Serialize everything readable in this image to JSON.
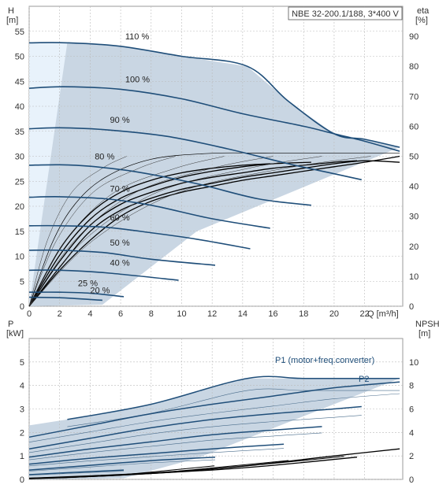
{
  "chart_data": [
    {
      "type": "line",
      "panel": "head-efficiency",
      "title": "NBE 32-200.1/188, 3*400 V",
      "ylabel": "H",
      "yunit": "[m]",
      "y2label": "eta",
      "y2unit": "[%]",
      "xlabel": "Q [m³/h]",
      "xlim": [
        0,
        24.5
      ],
      "ylim": [
        0,
        60
      ],
      "y2lim": [
        0,
        100
      ],
      "xticks": [
        "0",
        "2",
        "4",
        "6",
        "8",
        "10",
        "12",
        "14",
        "16",
        "18",
        "20",
        "22"
      ],
      "yticks": [
        "0",
        "5",
        "10",
        "15",
        "20",
        "25",
        "30",
        "35",
        "40",
        "45",
        "50",
        "55"
      ],
      "y2ticks": [
        "0",
        "10",
        "20",
        "30",
        "40",
        "50",
        "60",
        "70",
        "80",
        "90"
      ],
      "grid": true,
      "colors": {
        "envelope": "#c9d6e3",
        "envelope_light": "#e8f2fb",
        "curve": "#1f4e79",
        "eta": "#000000"
      },
      "series": [
        {
          "name": "110 %",
          "x": [
            0,
            2.5,
            6,
            10,
            14.3,
            17,
            20,
            22,
            24.3
          ],
          "y": [
            52.7,
            52.7,
            52,
            50,
            48,
            41,
            34.5,
            33.4,
            31.8
          ]
        },
        {
          "name": "100 %",
          "x": [
            0,
            2.3,
            6,
            10,
            14,
            18,
            20,
            22,
            24.3
          ],
          "y": [
            43.6,
            43.9,
            43.4,
            41.5,
            38.5,
            36,
            34.5,
            33,
            31
          ]
        },
        {
          "name": "90 %",
          "x": [
            0,
            2,
            5,
            9,
            13,
            17,
            20,
            21.8
          ],
          "y": [
            35.5,
            35.7,
            35.3,
            34,
            31.5,
            28.5,
            26.5,
            25.3
          ]
        },
        {
          "name": "80 %",
          "x": [
            0,
            2,
            4,
            7,
            11,
            15,
            18.5
          ],
          "y": [
            28.2,
            28.3,
            28.0,
            26.9,
            24.5,
            21.5,
            20.2
          ]
        },
        {
          "name": "70 %",
          "x": [
            0,
            2,
            5,
            8,
            12,
            15.8
          ],
          "y": [
            21.8,
            21.9,
            21.5,
            20.2,
            17.5,
            15.6
          ]
        },
        {
          "name": "60 %",
          "x": [
            0,
            2,
            5,
            8,
            11,
            14.5
          ],
          "y": [
            16.1,
            16.1,
            15.8,
            14.7,
            13.4,
            11.5
          ]
        },
        {
          "name": "50 %",
          "x": [
            0,
            2,
            5,
            8,
            12.2
          ],
          "y": [
            11.2,
            11.2,
            10.7,
            9.4,
            8.2
          ]
        },
        {
          "name": "40 %",
          "x": [
            0,
            2,
            5,
            9.8
          ],
          "y": [
            7.2,
            7.2,
            6.7,
            5.2
          ]
        },
        {
          "name": "25 %",
          "x": [
            0,
            2,
            4,
            6.2
          ],
          "y": [
            2.8,
            2.8,
            2.6,
            1.9
          ]
        },
        {
          "name": "20 %",
          "x": [
            0,
            2,
            4.8
          ],
          "y": [
            1.8,
            1.7,
            1.2
          ]
        }
      ],
      "eta_curves_percent": {
        "description_values": [
          {
            "x": [
              0,
              2,
              4,
              6,
              8,
              10,
              12,
              14,
              16,
              18,
              20,
              22,
              24.3
            ],
            "y": [
              0,
              13,
              25,
              32,
              36,
              39,
              41,
              43,
              44.5,
              46,
              47.5,
              48.5,
              48
            ]
          },
          {
            "x": [
              0,
              2,
              4,
              6,
              8,
              10,
              12,
              14,
              16,
              18,
              20,
              21.5
            ],
            "y": [
              0,
              15,
              27,
              34,
              38,
              41,
              43,
              44.5,
              46,
              47,
              48,
              48.5
            ]
          },
          {
            "x": [
              0,
              2,
              4,
              6,
              8,
              10,
              12,
              14,
              16,
              18.5
            ],
            "y": [
              0,
              17,
              29,
              36,
              40,
              43,
              45,
              46.5,
              47.5,
              48
            ]
          },
          {
            "x": [
              0,
              2,
              4,
              6,
              8,
              10,
              12,
              14,
              15.8
            ],
            "y": [
              0,
              19,
              31,
              38,
              42,
              44.5,
              46,
              47,
              47.5
            ]
          },
          {
            "x": [
              0,
              2,
              4,
              6,
              8,
              10,
              12,
              14,
              16,
              18,
              20,
              22,
              24.3
            ],
            "y": [
              0,
              12,
              22,
              30,
              35,
              38,
              40,
              42,
              43.5,
              45,
              46.5,
              48,
              50
            ]
          },
          {
            "x": [
              0,
              1.5,
              3,
              5,
              8,
              12,
              16,
              20,
              24.3
            ],
            "y": [
              0,
              21,
              34,
              43,
              49,
              51,
              51,
              51,
              51
            ]
          }
        ]
      }
    },
    {
      "type": "line",
      "panel": "power-npsh",
      "ylabel": "P",
      "yunit": "[kW]",
      "y2label": "NPSH",
      "y2unit": "[m]",
      "xlim": [
        0,
        24.5
      ],
      "ylim": [
        0,
        6
      ],
      "y2lim": [
        0,
        12
      ],
      "yticks": [
        "0",
        "1",
        "2",
        "3",
        "4",
        "5"
      ],
      "y2ticks": [
        "0",
        "2",
        "4",
        "6",
        "8",
        "10"
      ],
      "grid": true,
      "colors": {
        "envelope": "#c9d6e3",
        "curve": "#1f4e79",
        "npsh": "#000000"
      },
      "annotations": [
        "P1 (motor+freq.converter)",
        "P2"
      ],
      "series": [
        {
          "name": "P1 (motor+freq.converter)",
          "x": [
            2.5,
            8,
            14.3,
            18,
            22,
            24.3
          ],
          "y": [
            2.55,
            3.2,
            4.3,
            4.3,
            4.3,
            4.3
          ]
        },
        {
          "name": "P2",
          "x": [
            0,
            4,
            8,
            12,
            16,
            20,
            24.3
          ],
          "y": [
            1.8,
            2.3,
            2.8,
            3.2,
            3.55,
            3.9,
            4.15
          ]
        },
        {
          "name": "",
          "x": [
            0,
            4,
            8,
            12,
            16,
            20,
            21.8
          ],
          "y": [
            1.3,
            1.75,
            2.2,
            2.55,
            2.8,
            3.0,
            3.1
          ]
        },
        {
          "name": "",
          "x": [
            0,
            4,
            8,
            12,
            16,
            19.2
          ],
          "y": [
            0.95,
            1.3,
            1.6,
            1.9,
            2.1,
            2.25
          ]
        },
        {
          "name": "",
          "x": [
            0,
            4,
            8,
            12,
            16.7
          ],
          "y": [
            0.65,
            0.9,
            1.1,
            1.3,
            1.5
          ]
        },
        {
          "name": "",
          "x": [
            0,
            4,
            8,
            12.2
          ],
          "y": [
            0.4,
            0.6,
            0.8,
            0.95
          ]
        },
        {
          "name": "",
          "x": [
            0,
            3,
            6.2
          ],
          "y": [
            0.2,
            0.3,
            0.4
          ]
        }
      ],
      "npsh_m": [
        {
          "x": [
            0,
            4,
            8,
            12,
            16,
            20,
            24.3
          ],
          "y": [
            0.1,
            0.3,
            0.55,
            0.9,
            1.4,
            2.0,
            2.6
          ]
        },
        {
          "x": [
            0,
            4,
            8,
            12,
            16,
            21.5
          ],
          "y": [
            0.1,
            0.25,
            0.5,
            0.8,
            1.2,
            1.9
          ]
        }
      ]
    }
  ]
}
